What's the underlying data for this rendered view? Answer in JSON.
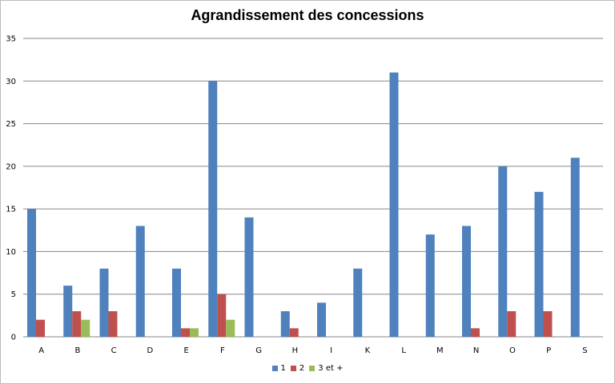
{
  "chart_data": {
    "type": "bar",
    "title": "Agrandissement des concessions",
    "xlabel": "",
    "ylabel": "",
    "ylim": [
      0,
      35
    ],
    "yticks": [
      "0",
      "5",
      "10",
      "15",
      "20",
      "25",
      "30",
      "35"
    ],
    "grid": true,
    "legend_position": "bottom",
    "categories": [
      "A",
      "B",
      "C",
      "D",
      "E",
      "F",
      "G",
      "H",
      "I",
      "K",
      "L",
      "M",
      "N",
      "O",
      "P",
      "S"
    ],
    "series": [
      {
        "name": "1",
        "color": "#4f81bd",
        "values": [
          15,
          6,
          8,
          13,
          8,
          30,
          14,
          3,
          4,
          8,
          31,
          12,
          13,
          20,
          17,
          21
        ]
      },
      {
        "name": "2",
        "color": "#c0504d",
        "values": [
          2,
          3,
          3,
          0,
          1,
          5,
          0,
          1,
          0,
          0,
          0,
          0,
          1,
          3,
          3,
          0
        ]
      },
      {
        "name": "3 et +",
        "color": "#9bbb59",
        "values": [
          0,
          2,
          0,
          0,
          1,
          2,
          0,
          0,
          0,
          0,
          0,
          0,
          0,
          0,
          0,
          0
        ]
      }
    ]
  }
}
